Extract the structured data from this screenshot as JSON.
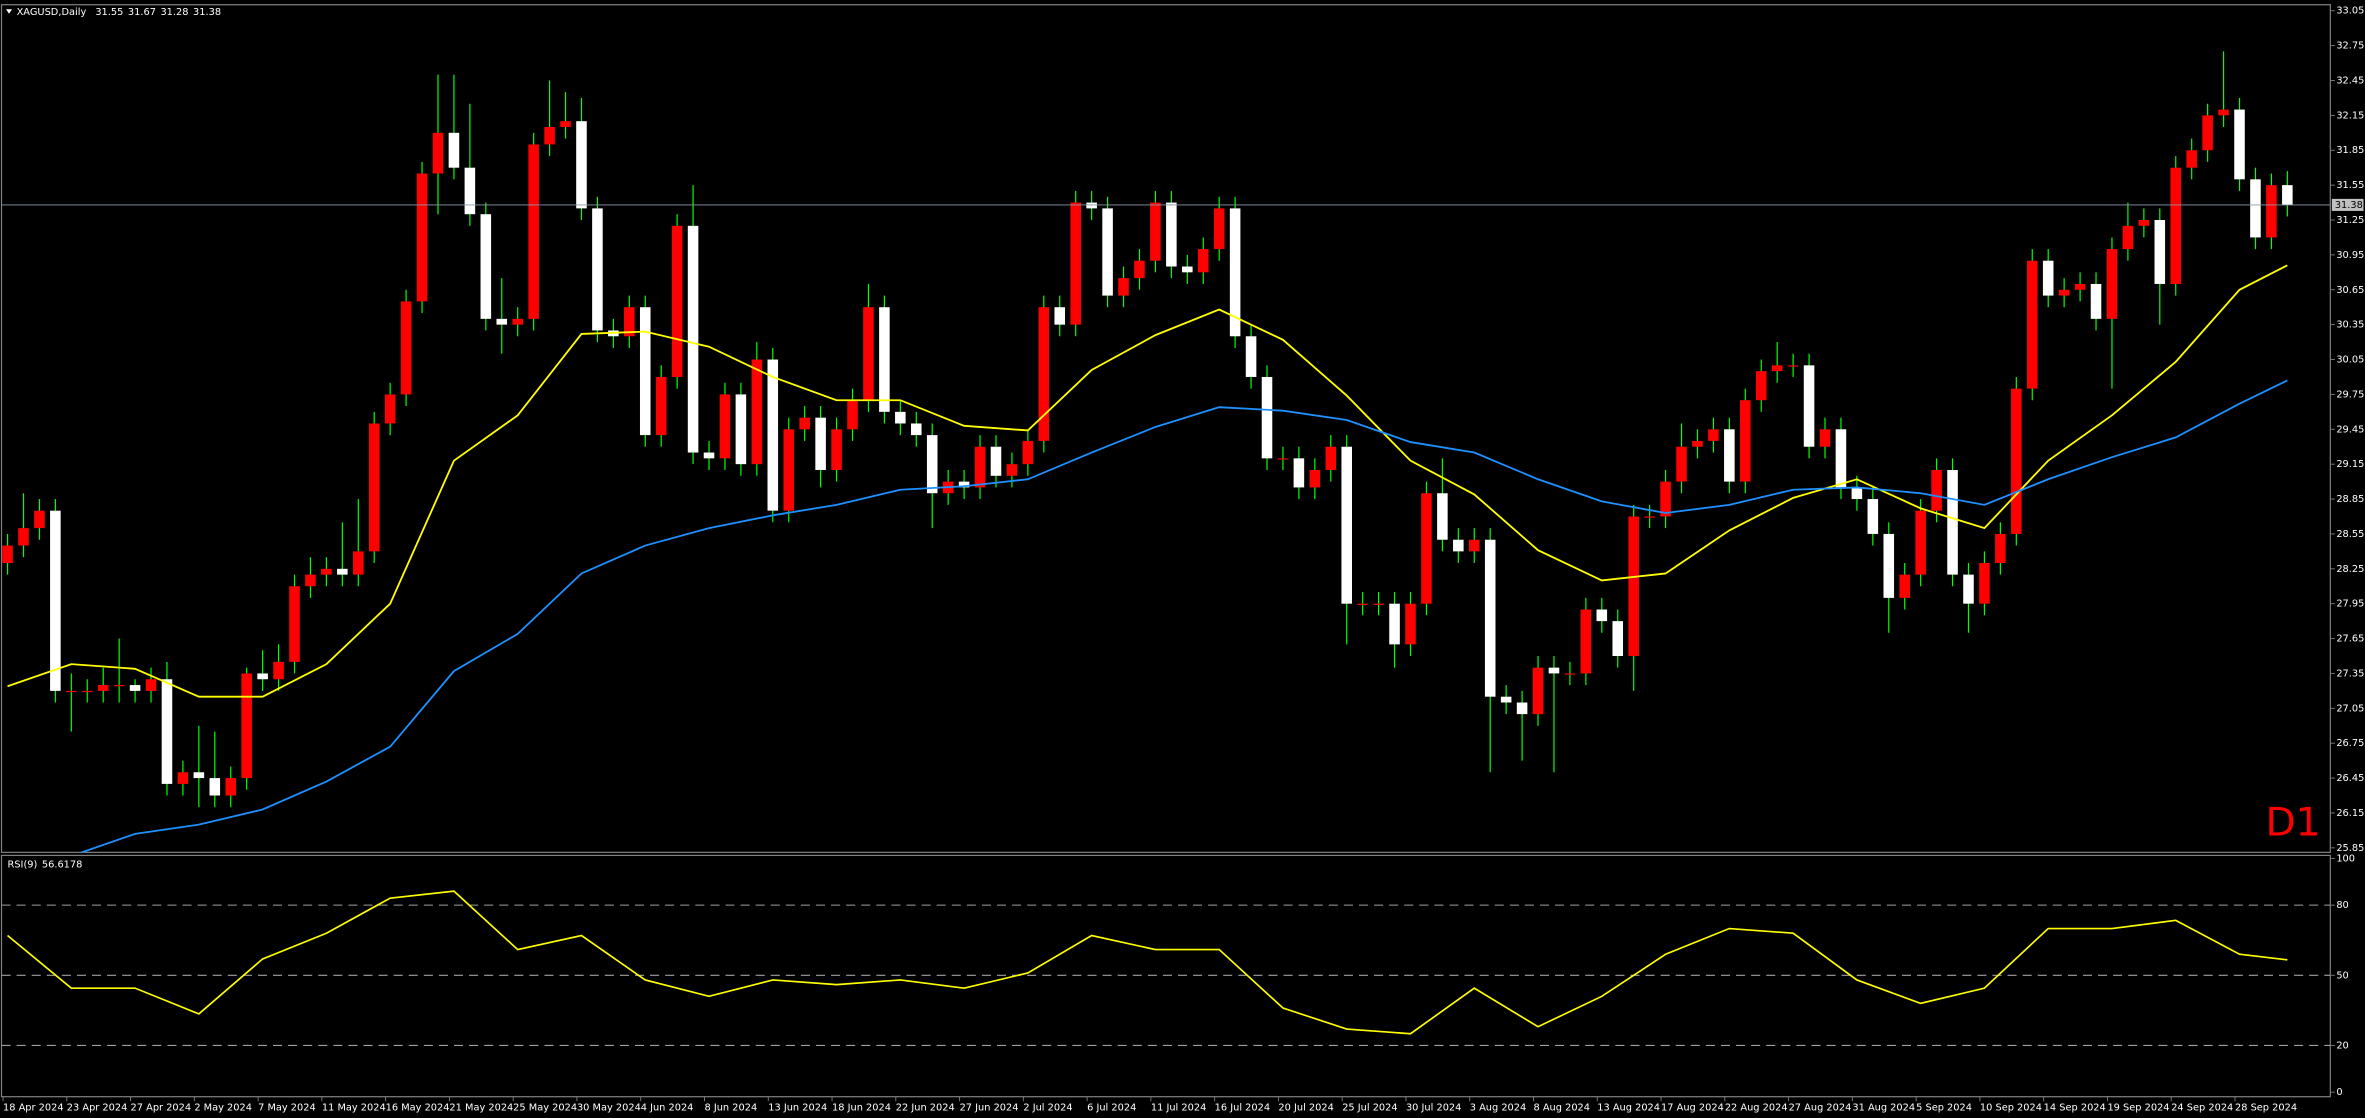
{
  "chart_data": [
    {
      "type": "candlestick",
      "title": "XAGUSD,Daily",
      "annotation": "D1",
      "categories": [
        "18 Apr 2024",
        null,
        null,
        null,
        "23 Apr 2024",
        null,
        null,
        null,
        "27 Apr 2024",
        null,
        null,
        null,
        "2 May 2024",
        null,
        null,
        null,
        "7 May 2024",
        null,
        null,
        null,
        "11 May 2024",
        null,
        null,
        null,
        "16 May 2024",
        null,
        null,
        null,
        "21 May 2024",
        null,
        null,
        null,
        "25 May 2024",
        null,
        null,
        null,
        "30 May 2024",
        null,
        null,
        null,
        "4 Jun 2024",
        null,
        null,
        null,
        "8 Jun 2024",
        null,
        null,
        null,
        "13 Jun 2024",
        null,
        null,
        null,
        "18 Jun 2024",
        null,
        null,
        null,
        "22 Jun 2024",
        null,
        null,
        null,
        "27 Jun 2024",
        null,
        null,
        null,
        "2 Jul 2024",
        null,
        null,
        null,
        "6 Jul 2024",
        null,
        null,
        null,
        "11 Jul 2024",
        null,
        null,
        null,
        "16 Jul 2024",
        null,
        null,
        null,
        "20 Jul 2024",
        null,
        null,
        null,
        "25 Jul 2024",
        null,
        null,
        null,
        "30 Jul 2024",
        null,
        null,
        null,
        "3 Aug 2024",
        null,
        null,
        null,
        "8 Aug 2024",
        null,
        null,
        null,
        "13 Aug 2024",
        null,
        null,
        null,
        "17 Aug 2024",
        null,
        null,
        null,
        "22 Aug 2024",
        null,
        null,
        null,
        "27 Aug 2024",
        null,
        null,
        null,
        "31 Aug 2024",
        null,
        null,
        null,
        "5 Sep 2024",
        null,
        null,
        null,
        "10 Sep 2024",
        null,
        null,
        null,
        "14 Sep 2024",
        null,
        null,
        null,
        "19 Sep 2024",
        null,
        null,
        null,
        "24 Sep 2024",
        null,
        null,
        null,
        "28 Sep 2024",
        null,
        null,
        null
      ],
      "open": [
        28.3,
        28.45,
        28.6,
        28.75,
        27.2,
        27.2,
        27.2,
        27.25,
        27.25,
        27.2,
        27.3,
        26.4,
        26.5,
        26.45,
        26.3,
        26.45,
        27.35,
        27.3,
        27.45,
        28.1,
        28.2,
        28.25,
        28.2,
        28.4,
        29.5,
        29.75,
        30.55,
        31.65,
        32.0,
        31.7,
        31.3,
        30.4,
        30.35,
        30.4,
        31.9,
        32.05,
        32.1,
        31.35,
        30.3,
        30.25,
        30.5,
        29.4,
        29.9,
        31.2,
        29.25,
        29.2,
        29.75,
        29.15,
        30.05,
        28.75,
        29.45,
        29.55,
        29.1,
        29.45,
        29.7,
        30.5,
        29.6,
        29.5,
        29.4,
        28.9,
        29.0,
        28.95,
        29.3,
        29.05,
        29.15,
        29.35,
        30.5,
        30.35,
        31.4,
        31.35,
        30.6,
        30.75,
        30.9,
        31.4,
        30.85,
        30.8,
        31.0,
        31.35,
        30.25,
        29.9,
        29.2,
        29.2,
        28.95,
        29.1,
        29.3,
        27.95,
        27.95,
        27.95,
        27.6,
        27.95,
        28.9,
        28.5,
        28.4,
        28.5,
        27.15,
        27.1,
        27.0,
        27.4,
        27.35,
        27.35,
        27.9,
        27.8,
        27.5,
        28.7,
        28.7,
        29.0,
        29.3,
        29.35,
        29.45,
        29.0,
        29.7,
        29.95,
        30.0,
        30.0,
        29.3,
        29.45,
        28.95,
        28.85,
        28.55,
        28.0,
        28.2,
        28.75,
        29.1,
        28.2,
        27.95,
        28.3,
        28.55,
        29.8,
        30.9,
        30.6,
        30.65,
        30.7,
        30.4,
        31.0,
        31.2,
        31.25,
        30.7,
        31.7,
        31.85,
        32.15,
        32.2,
        31.6,
        31.1,
        31.55
      ],
      "high": [
        28.55,
        28.9,
        28.85,
        28.85,
        27.35,
        27.3,
        27.4,
        27.65,
        27.3,
        27.4,
        27.45,
        26.6,
        26.9,
        26.85,
        26.55,
        27.4,
        27.55,
        27.6,
        28.2,
        28.35,
        28.35,
        28.65,
        28.85,
        29.6,
        29.85,
        30.65,
        31.75,
        32.5,
        32.5,
        32.25,
        31.4,
        30.75,
        30.5,
        32.0,
        32.45,
        32.35,
        32.3,
        31.45,
        30.4,
        30.6,
        30.6,
        30.0,
        31.3,
        31.55,
        29.35,
        29.85,
        29.85,
        30.2,
        30.15,
        29.55,
        29.65,
        29.65,
        29.55,
        29.8,
        30.7,
        30.6,
        29.7,
        29.6,
        29.5,
        29.1,
        29.1,
        29.4,
        29.4,
        29.25,
        29.45,
        30.6,
        30.6,
        31.5,
        31.5,
        31.45,
        30.85,
        31.0,
        31.5,
        31.5,
        30.95,
        31.1,
        31.45,
        31.45,
        30.35,
        30.0,
        29.3,
        29.3,
        29.2,
        29.4,
        29.4,
        28.05,
        28.05,
        28.05,
        28.05,
        29.0,
        29.2,
        28.6,
        28.6,
        28.6,
        27.25,
        27.2,
        27.5,
        27.5,
        27.45,
        28.0,
        28.0,
        27.9,
        28.8,
        28.8,
        29.1,
        29.5,
        29.45,
        29.55,
        29.55,
        29.8,
        30.05,
        30.2,
        30.1,
        30.1,
        29.55,
        29.55,
        29.05,
        28.95,
        28.65,
        28.3,
        28.85,
        29.2,
        29.2,
        28.3,
        28.4,
        28.65,
        29.9,
        31.0,
        31.0,
        30.75,
        30.8,
        30.8,
        31.1,
        31.4,
        31.35,
        31.35,
        31.8,
        31.95,
        32.25,
        32.7,
        32.3,
        31.7,
        31.65,
        31.67
      ],
      "low": [
        28.2,
        28.35,
        28.5,
        27.1,
        26.85,
        27.1,
        27.1,
        27.1,
        27.1,
        27.1,
        26.3,
        26.3,
        26.2,
        26.2,
        26.2,
        26.35,
        27.2,
        27.2,
        27.35,
        28.0,
        28.1,
        28.1,
        28.1,
        28.3,
        29.4,
        29.65,
        30.45,
        31.3,
        31.6,
        31.2,
        30.3,
        30.1,
        30.25,
        30.3,
        31.8,
        31.95,
        31.25,
        30.2,
        30.15,
        30.15,
        29.3,
        29.3,
        29.8,
        29.15,
        29.1,
        29.1,
        29.05,
        29.05,
        28.65,
        28.65,
        29.35,
        28.95,
        29.0,
        29.35,
        29.6,
        29.5,
        29.4,
        29.3,
        28.6,
        28.8,
        28.85,
        28.85,
        28.95,
        28.95,
        29.05,
        29.25,
        30.25,
        30.25,
        31.25,
        30.5,
        30.5,
        30.65,
        30.8,
        30.75,
        30.7,
        30.7,
        30.9,
        30.15,
        29.8,
        29.1,
        29.1,
        28.85,
        28.85,
        29.0,
        27.6,
        27.85,
        27.85,
        27.4,
        27.5,
        27.85,
        28.4,
        28.3,
        28.3,
        26.5,
        27.0,
        26.6,
        26.9,
        26.5,
        27.25,
        27.25,
        27.7,
        27.4,
        27.2,
        28.6,
        28.6,
        28.9,
        29.2,
        29.25,
        28.9,
        28.9,
        29.6,
        29.85,
        29.9,
        29.2,
        29.2,
        28.85,
        28.75,
        28.45,
        27.7,
        27.9,
        28.1,
        28.65,
        28.1,
        27.7,
        27.85,
        28.2,
        28.45,
        29.7,
        30.5,
        30.5,
        30.55,
        30.3,
        29.8,
        30.9,
        31.1,
        30.35,
        30.6,
        31.6,
        31.75,
        32.05,
        31.5,
        31.0,
        31.0,
        31.28
      ],
      "close": [
        28.45,
        28.6,
        28.75,
        27.2,
        27.2,
        27.2,
        27.25,
        27.25,
        27.2,
        27.3,
        26.4,
        26.5,
        26.45,
        26.3,
        26.45,
        27.35,
        27.3,
        27.45,
        28.1,
        28.2,
        28.25,
        28.2,
        28.4,
        29.5,
        29.75,
        30.55,
        31.65,
        32.0,
        31.7,
        31.3,
        30.4,
        30.35,
        30.4,
        31.9,
        32.05,
        32.1,
        31.35,
        30.3,
        30.25,
        30.5,
        29.4,
        29.9,
        31.2,
        29.25,
        29.2,
        29.75,
        29.15,
        30.05,
        28.75,
        29.45,
        29.55,
        29.1,
        29.45,
        29.7,
        30.5,
        29.6,
        29.5,
        29.4,
        28.9,
        29.0,
        28.95,
        29.3,
        29.05,
        29.15,
        29.35,
        30.5,
        30.35,
        31.4,
        31.35,
        30.6,
        30.75,
        30.9,
        31.4,
        30.85,
        30.8,
        31.0,
        31.35,
        30.25,
        29.9,
        29.2,
        29.2,
        28.95,
        29.1,
        29.3,
        27.95,
        27.95,
        27.95,
        27.6,
        27.95,
        28.9,
        28.5,
        28.4,
        28.5,
        27.15,
        27.1,
        27.0,
        27.4,
        27.35,
        27.35,
        27.9,
        27.8,
        27.5,
        28.7,
        28.7,
        29.0,
        29.3,
        29.35,
        29.45,
        29.0,
        29.7,
        29.95,
        30.0,
        30.0,
        29.3,
        29.45,
        28.95,
        28.85,
        28.55,
        28.0,
        28.2,
        28.75,
        29.1,
        28.2,
        27.95,
        28.3,
        28.55,
        29.8,
        30.9,
        30.6,
        30.65,
        30.7,
        30.4,
        31.0,
        31.2,
        31.25,
        30.7,
        31.7,
        31.85,
        32.15,
        32.2,
        31.6,
        31.1,
        31.55,
        31.38
      ],
      "up_color": "#ff0000",
      "down_color": "#ffffff",
      "wick_color": "#00ff00",
      "current_line_color": "#8c9aa8",
      "series": [
        {
          "color": "#ffff00",
          "x": [
            0,
            4,
            8,
            12,
            16,
            20,
            24,
            28,
            32,
            36,
            40,
            44,
            48,
            52,
            56,
            60,
            64,
            68,
            72,
            76,
            80,
            84,
            88,
            92,
            96,
            100,
            104,
            108,
            112,
            116,
            120,
            124,
            128,
            132,
            136,
            140,
            143
          ],
          "values": [
            27.24,
            27.43,
            27.39,
            27.15,
            27.15,
            27.43,
            27.95,
            29.18,
            29.57,
            30.27,
            30.29,
            30.16,
            29.9,
            29.7,
            29.7,
            29.48,
            29.44,
            29.96,
            30.26,
            30.48,
            30.22,
            29.74,
            29.18,
            28.89,
            28.41,
            28.15,
            28.21,
            28.58,
            28.86,
            29.02,
            28.77,
            28.6,
            29.18,
            29.57,
            30.03,
            30.65,
            30.86
          ]
        },
        {
          "color": "#1e90ff",
          "x": [
            4,
            8,
            12,
            16,
            20,
            24,
            28,
            32,
            36,
            40,
            44,
            48,
            52,
            56,
            60,
            64,
            68,
            72,
            76,
            80,
            84,
            88,
            92,
            96,
            100,
            104,
            108,
            112,
            116,
            120,
            124,
            128,
            132,
            136,
            140,
            143
          ],
          "values": [
            25.78,
            25.97,
            26.05,
            26.18,
            26.42,
            26.72,
            27.37,
            27.69,
            28.21,
            28.45,
            28.6,
            28.71,
            28.8,
            28.93,
            28.96,
            29.02,
            29.25,
            29.47,
            29.64,
            29.61,
            29.53,
            29.34,
            29.25,
            29.02,
            28.83,
            28.73,
            28.8,
            28.93,
            28.95,
            28.9,
            28.8,
            29.02,
            29.21,
            29.38,
            29.67,
            29.87
          ]
        }
      ],
      "ylim": [
        25.85,
        33.05
      ],
      "yticks": [
        33.05,
        32.75,
        32.45,
        32.15,
        31.85,
        31.55,
        31.25,
        30.95,
        30.65,
        30.35,
        30.05,
        29.75,
        29.45,
        29.15,
        28.85,
        28.55,
        28.25,
        27.95,
        27.65,
        27.35,
        27.05,
        26.75,
        26.45,
        26.15,
        25.85
      ]
    },
    {
      "type": "line",
      "title": "RSI(9)",
      "color": "#ffff00",
      "x": [
        0,
        4,
        8,
        12,
        16,
        20,
        24,
        28,
        32,
        36,
        40,
        44,
        48,
        52,
        56,
        60,
        64,
        68,
        72,
        76,
        80,
        84,
        88,
        92,
        96,
        100,
        104,
        108,
        112,
        116,
        120,
        124,
        128,
        132,
        136,
        140,
        143
      ],
      "values": [
        67,
        44.5,
        44.5,
        33.5,
        57,
        68,
        83,
        86,
        61,
        67,
        48,
        41,
        48,
        46,
        48,
        44.5,
        51,
        67,
        61,
        61,
        36,
        27,
        25,
        44.5,
        28,
        41,
        59,
        70,
        68,
        48,
        38,
        44.5,
        70,
        70,
        73.5,
        59,
        56.6178
      ],
      "ylim": [
        0,
        100
      ],
      "yticks": [
        100,
        80,
        50,
        20,
        0
      ],
      "levels": [
        80,
        50,
        20
      ]
    }
  ]
}
